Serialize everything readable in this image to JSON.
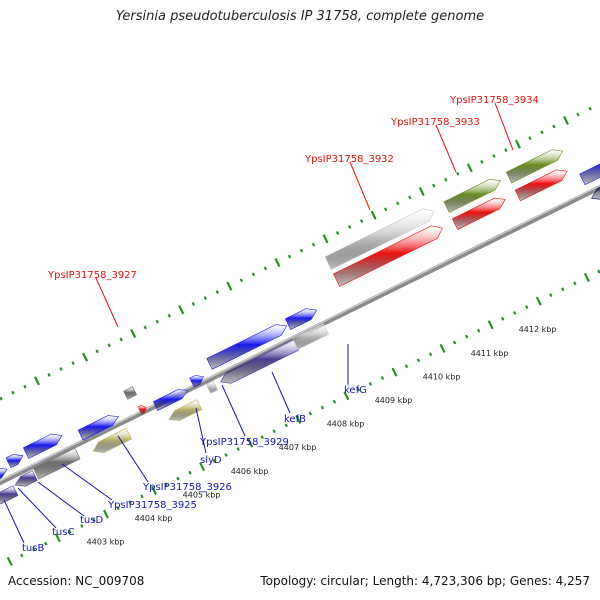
{
  "title": "Yersinia pseudotuberculosis IP 31758, complete genome",
  "footer": {
    "accession": "Accession: NC_009708",
    "topology": "Topology: circular; Length: 4,723,306 bp; Genes: 4,257"
  },
  "scale": {
    "ticks": [
      {
        "label": "4403 kbp"
      },
      {
        "label": "4404 kbp"
      },
      {
        "label": "4405 kbp"
      },
      {
        "label": "4406 kbp"
      },
      {
        "label": "4407 kbp"
      },
      {
        "label": "4408 kbp"
      },
      {
        "label": "4409 kbp"
      },
      {
        "label": "4410 kbp"
      },
      {
        "label": "4411 kbp"
      },
      {
        "label": "4412 kbp"
      }
    ]
  },
  "colors": {
    "backbone": "#8a8a8a",
    "tick": "#2e8b2e",
    "forward_gene": "#1a1aee",
    "reverse_gene": "#4a3d94",
    "red_gene": "#ee1111",
    "olive_gene": "#6b8e23",
    "khaki_gene": "#bdb76b",
    "grey_gene": "#c8c8c8",
    "dark_grey_gene": "#6e6e6e",
    "navy_gene": "#0a0a77",
    "label_blue": "#1616aa",
    "label_red": "#dd1111"
  },
  "gene_labels": [
    {
      "text": "YpsIP31758_3934",
      "color": "red"
    },
    {
      "text": "YpsIP31758_3933",
      "color": "red"
    },
    {
      "text": "YpsIP31758_3932",
      "color": "red"
    },
    {
      "text": "YpsIP31758_3927",
      "color": "red"
    },
    {
      "text": "kefG",
      "color": "blue"
    },
    {
      "text": "kefB",
      "color": "blue"
    },
    {
      "text": "YpsIP31758_3929",
      "color": "blue"
    },
    {
      "text": "slyD",
      "color": "blue"
    },
    {
      "text": "YpsIP31758_3926",
      "color": "blue"
    },
    {
      "text": "YpsIP31758_3925",
      "color": "blue"
    },
    {
      "text": "tusD",
      "color": "blue"
    },
    {
      "text": "tusC",
      "color": "blue"
    },
    {
      "text": "tusB",
      "color": "blue"
    }
  ]
}
